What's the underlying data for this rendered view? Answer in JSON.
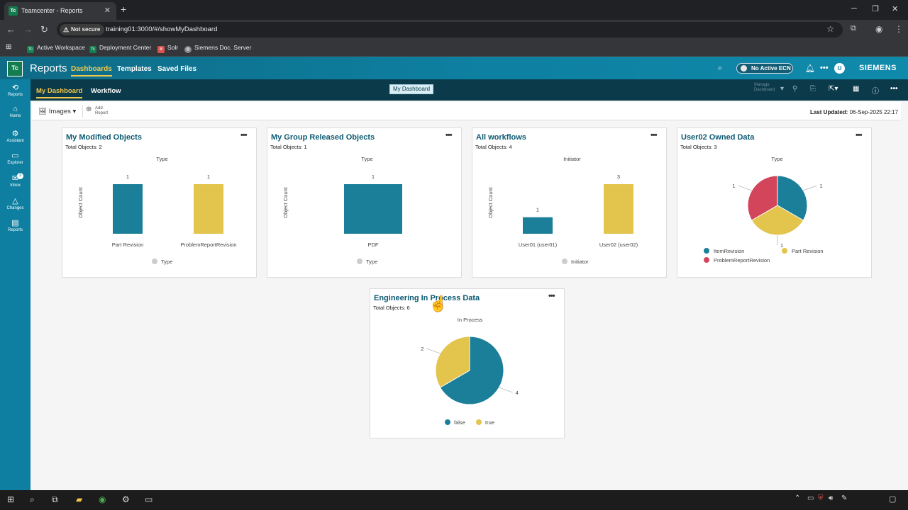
{
  "browser": {
    "tab_title": "Teamcenter - Reports",
    "tab_favicon": "Tc",
    "security_label": "Not secure",
    "url": "training01:3000/#/showMyDashboard",
    "bookmarks": [
      "Active Workspace",
      "Deployment Center",
      "Solr",
      "Siemens Doc. Server"
    ]
  },
  "app": {
    "logo": "Tc",
    "title": "Reports",
    "nav": [
      "Dashboards",
      "Templates",
      "Saved Files"
    ],
    "ecn_label": "No Active ECN",
    "avatar": "U",
    "brand": "SIEMENS",
    "accent": "#f2c94c",
    "primary": "#0e7fa0"
  },
  "subheader": {
    "tabs": [
      "My Dashboard",
      "Workflow"
    ],
    "breadcrumb": "My Dashboard",
    "manage_label": "Manage Dashboard"
  },
  "rail": [
    "Reports",
    "Home",
    "Assistant",
    "Explorer",
    "Inbox",
    "Changes",
    "Reports"
  ],
  "inbox_count": "3",
  "toolbar": {
    "images_label": "Images",
    "add_report_label": "Add Report",
    "last_updated_label": "Last Updated:",
    "last_updated_value": "06-Sep-2025 22:17"
  },
  "cards": [
    {
      "title": "My Modified Objects",
      "total": "Total Objects: 2"
    },
    {
      "title": "My Group Released Objects",
      "total": "Total Objects: 1"
    },
    {
      "title": "All workflows",
      "total": "Total Objects: 4"
    },
    {
      "title": "User02 Owned Data",
      "total": "Total Objects: 3"
    },
    {
      "title": "Engineering In Process Data",
      "total": "Total Objects: 6"
    }
  ],
  "chart_data": [
    {
      "type": "bar",
      "title": "Type",
      "ylabel": "Object Count",
      "categories": [
        "Part Revision",
        "ProblemReportRevision"
      ],
      "values": [
        1,
        1
      ],
      "colors": [
        "#1b7f99",
        "#e3c44d"
      ],
      "legend": [
        "Type"
      ],
      "legend_position": "bottom",
      "ylim": [
        0,
        1
      ]
    },
    {
      "type": "bar",
      "title": "Type",
      "ylabel": "Object Count",
      "categories": [
        "PDF"
      ],
      "values": [
        1
      ],
      "colors": [
        "#1b7f99"
      ],
      "legend": [
        "Type"
      ],
      "legend_position": "bottom",
      "ylim": [
        0,
        1
      ]
    },
    {
      "type": "bar",
      "title": "Initiator",
      "ylabel": "Object Count",
      "categories": [
        "User01 (user01)",
        "User02 (user02)"
      ],
      "values": [
        1,
        3
      ],
      "colors": [
        "#1b7f99",
        "#e3c44d"
      ],
      "legend": [
        "Initiator"
      ],
      "legend_position": "bottom",
      "ylim": [
        0,
        3
      ]
    },
    {
      "type": "pie",
      "title": "Type",
      "categories": [
        "ItemRevision",
        "Part Revision",
        "ProblemReportRevision"
      ],
      "values": [
        1,
        1,
        1
      ],
      "colors": [
        "#1b7f99",
        "#e3c44d",
        "#d2455b"
      ],
      "legend_position": "bottom"
    },
    {
      "type": "pie",
      "title": "In Process",
      "categories": [
        "false",
        "true"
      ],
      "values": [
        4,
        2
      ],
      "colors": [
        "#1b7f99",
        "#e3c44d"
      ],
      "legend_position": "bottom"
    }
  ],
  "taskbar_icons": [
    "windows-icon",
    "search-icon",
    "task-view-icon",
    "file-explorer-icon",
    "chrome-icon",
    "settings-icon",
    "terminal-icon"
  ]
}
